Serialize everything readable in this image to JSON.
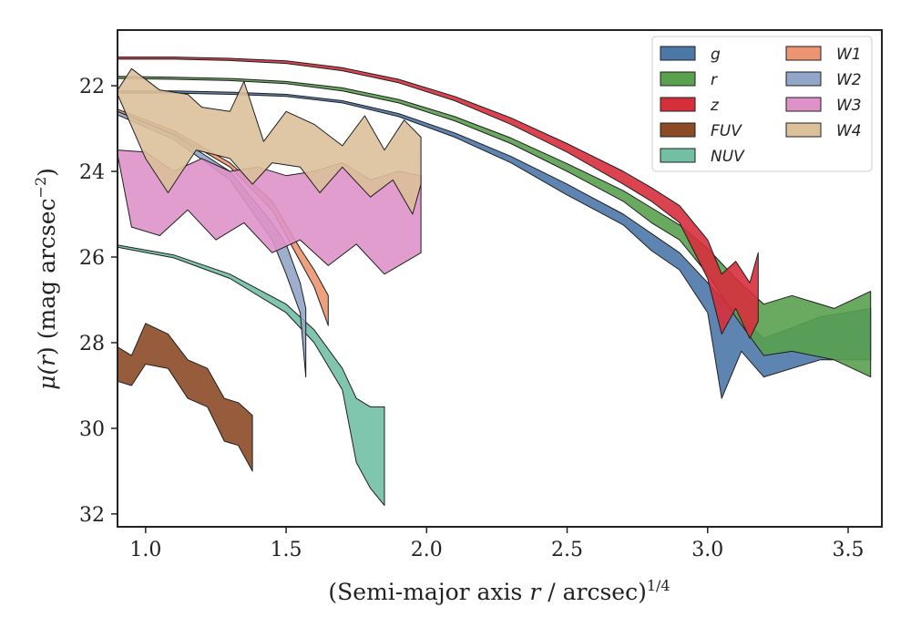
{
  "chart_data": {
    "type": "area",
    "xlabel": "(Semi-major axis r / arcsec)^1/4",
    "ylabel": "μ(r) (mag arcsec^-2)",
    "xlabel_parts": {
      "a": "(Semi-major axis ",
      "b": "r",
      "c": " / arcsec)",
      "sup": "1/4"
    },
    "ylabel_parts": {
      "a": "μ(",
      "b": "r",
      "c": ") (mag arcsec",
      "sup": "−2",
      "d": ")"
    },
    "xlim": [
      0.9,
      3.62
    ],
    "ylim": [
      32.3,
      20.7
    ],
    "y_inverted": true,
    "grid": false,
    "legend_position": "top-right",
    "x_ticks": [
      1.0,
      1.5,
      2.0,
      2.5,
      3.0,
      3.5
    ],
    "x_tick_labels": [
      "1.0",
      "1.5",
      "2.0",
      "2.5",
      "3.0",
      "3.5"
    ],
    "y_ticks": [
      22,
      24,
      26,
      28,
      30,
      32
    ],
    "y_tick_labels": [
      "22",
      "24",
      "26",
      "28",
      "30",
      "32"
    ],
    "series": [
      {
        "name": "g",
        "color": "#4c78a8",
        "upper": [
          [
            0.9,
            22.12
          ],
          [
            1.1,
            22.12
          ],
          [
            1.3,
            22.15
          ],
          [
            1.5,
            22.2
          ],
          [
            1.7,
            22.35
          ],
          [
            1.9,
            22.65
          ],
          [
            2.1,
            23.1
          ],
          [
            2.3,
            23.65
          ],
          [
            2.5,
            24.3
          ],
          [
            2.7,
            25.0
          ],
          [
            2.8,
            25.45
          ],
          [
            2.9,
            25.9
          ],
          [
            3.0,
            26.6
          ],
          [
            3.1,
            27.3
          ],
          [
            3.2,
            27.9
          ],
          [
            3.4,
            27.4
          ],
          [
            3.58,
            27.2
          ]
        ],
        "lower": [
          [
            0.9,
            22.17
          ],
          [
            1.1,
            22.17
          ],
          [
            1.3,
            22.2
          ],
          [
            1.5,
            22.25
          ],
          [
            1.7,
            22.4
          ],
          [
            1.9,
            22.72
          ],
          [
            2.1,
            23.2
          ],
          [
            2.3,
            23.8
          ],
          [
            2.5,
            24.55
          ],
          [
            2.7,
            25.25
          ],
          [
            2.8,
            25.85
          ],
          [
            2.9,
            26.3
          ],
          [
            3.0,
            27.3
          ],
          [
            3.05,
            29.3
          ],
          [
            3.12,
            28.2
          ],
          [
            3.2,
            28.8
          ],
          [
            3.4,
            28.4
          ],
          [
            3.58,
            28.4
          ]
        ]
      },
      {
        "name": "r",
        "color": "#59a14f",
        "upper": [
          [
            0.9,
            21.78
          ],
          [
            1.1,
            21.8
          ],
          [
            1.3,
            21.83
          ],
          [
            1.5,
            21.9
          ],
          [
            1.7,
            22.05
          ],
          [
            1.9,
            22.32
          ],
          [
            2.1,
            22.72
          ],
          [
            2.3,
            23.22
          ],
          [
            2.5,
            23.82
          ],
          [
            2.7,
            24.45
          ],
          [
            2.8,
            24.85
          ],
          [
            2.9,
            25.25
          ],
          [
            3.0,
            25.8
          ],
          [
            3.1,
            26.5
          ],
          [
            3.2,
            27.1
          ],
          [
            3.3,
            26.9
          ],
          [
            3.45,
            27.2
          ],
          [
            3.58,
            26.8
          ]
        ],
        "lower": [
          [
            0.9,
            21.83
          ],
          [
            1.1,
            21.85
          ],
          [
            1.3,
            21.88
          ],
          [
            1.5,
            21.95
          ],
          [
            1.7,
            22.12
          ],
          [
            1.9,
            22.4
          ],
          [
            2.1,
            22.82
          ],
          [
            2.3,
            23.35
          ],
          [
            2.5,
            24.0
          ],
          [
            2.7,
            24.7
          ],
          [
            2.8,
            25.2
          ],
          [
            2.9,
            25.6
          ],
          [
            3.0,
            26.4
          ],
          [
            3.1,
            27.4
          ],
          [
            3.2,
            28.3
          ],
          [
            3.3,
            28.2
          ],
          [
            3.45,
            28.4
          ],
          [
            3.58,
            28.8
          ]
        ]
      },
      {
        "name": "z",
        "color": "#d62f3c",
        "upper": [
          [
            0.9,
            21.33
          ],
          [
            1.1,
            21.33
          ],
          [
            1.3,
            21.36
          ],
          [
            1.5,
            21.42
          ],
          [
            1.7,
            21.58
          ],
          [
            1.9,
            21.85
          ],
          [
            2.1,
            22.25
          ],
          [
            2.3,
            22.75
          ],
          [
            2.5,
            23.35
          ],
          [
            2.7,
            24.0
          ],
          [
            2.8,
            24.38
          ],
          [
            2.9,
            24.8
          ],
          [
            3.0,
            25.6
          ],
          [
            3.05,
            26.4
          ],
          [
            3.1,
            26.1
          ],
          [
            3.15,
            26.6
          ],
          [
            3.18,
            25.9
          ]
        ],
        "lower": [
          [
            0.9,
            21.38
          ],
          [
            1.1,
            21.38
          ],
          [
            1.3,
            21.41
          ],
          [
            1.5,
            21.48
          ],
          [
            1.7,
            21.65
          ],
          [
            1.9,
            21.93
          ],
          [
            2.1,
            22.35
          ],
          [
            2.3,
            22.9
          ],
          [
            2.5,
            23.55
          ],
          [
            2.7,
            24.3
          ],
          [
            2.8,
            24.7
          ],
          [
            2.9,
            25.2
          ],
          [
            3.0,
            26.5
          ],
          [
            3.05,
            27.8
          ],
          [
            3.1,
            27.2
          ],
          [
            3.15,
            27.9
          ],
          [
            3.18,
            27.5
          ]
        ]
      },
      {
        "name": "FUV",
        "color": "#8c4a26",
        "upper": [
          [
            0.9,
            28.1
          ],
          [
            0.95,
            28.3
          ],
          [
            1.0,
            27.55
          ],
          [
            1.08,
            27.8
          ],
          [
            1.15,
            28.4
          ],
          [
            1.22,
            28.6
          ],
          [
            1.28,
            29.3
          ],
          [
            1.33,
            29.4
          ],
          [
            1.38,
            29.7
          ]
        ],
        "lower": [
          [
            0.9,
            28.9
          ],
          [
            0.95,
            29.0
          ],
          [
            1.0,
            28.5
          ],
          [
            1.08,
            28.6
          ],
          [
            1.15,
            29.3
          ],
          [
            1.22,
            29.5
          ],
          [
            1.28,
            30.3
          ],
          [
            1.33,
            30.4
          ],
          [
            1.38,
            31.0
          ]
        ]
      },
      {
        "name": "NUV",
        "color": "#72bfa4",
        "upper": [
          [
            0.9,
            25.72
          ],
          [
            1.1,
            25.95
          ],
          [
            1.3,
            26.4
          ],
          [
            1.5,
            27.1
          ],
          [
            1.6,
            27.7
          ],
          [
            1.7,
            28.6
          ],
          [
            1.75,
            29.3
          ],
          [
            1.8,
            29.5
          ],
          [
            1.85,
            29.5
          ]
        ],
        "lower": [
          [
            0.9,
            25.77
          ],
          [
            1.1,
            26.02
          ],
          [
            1.3,
            26.5
          ],
          [
            1.5,
            27.3
          ],
          [
            1.6,
            28.0
          ],
          [
            1.7,
            29.1
          ],
          [
            1.75,
            30.8
          ],
          [
            1.8,
            31.4
          ],
          [
            1.85,
            31.8
          ]
        ]
      },
      {
        "name": "W1",
        "color": "#ec9570",
        "upper": [
          [
            0.9,
            22.55
          ],
          [
            1.1,
            23.05
          ],
          [
            1.3,
            23.8
          ],
          [
            1.45,
            24.7
          ],
          [
            1.55,
            25.8
          ],
          [
            1.6,
            26.3
          ],
          [
            1.65,
            26.9
          ]
        ],
        "lower": [
          [
            0.9,
            22.6
          ],
          [
            1.1,
            23.12
          ],
          [
            1.3,
            23.9
          ],
          [
            1.45,
            24.9
          ],
          [
            1.55,
            26.1
          ],
          [
            1.6,
            26.7
          ],
          [
            1.65,
            27.6
          ]
        ]
      },
      {
        "name": "W2",
        "color": "#93a6c9",
        "upper": [
          [
            0.9,
            22.6
          ],
          [
            1.1,
            23.15
          ],
          [
            1.3,
            24.0
          ],
          [
            1.45,
            25.2
          ],
          [
            1.5,
            25.7
          ],
          [
            1.55,
            26.6
          ],
          [
            1.57,
            27.2
          ]
        ],
        "lower": [
          [
            0.9,
            22.68
          ],
          [
            1.1,
            23.25
          ],
          [
            1.3,
            24.2
          ],
          [
            1.45,
            25.6
          ],
          [
            1.5,
            26.4
          ],
          [
            1.55,
            27.3
          ],
          [
            1.57,
            28.8
          ]
        ]
      },
      {
        "name": "W3",
        "color": "#de92c8",
        "upper": [
          [
            0.9,
            23.5
          ],
          [
            1.0,
            23.55
          ],
          [
            1.1,
            24.0
          ],
          [
            1.2,
            23.7
          ],
          [
            1.3,
            24.0
          ],
          [
            1.4,
            23.9
          ],
          [
            1.5,
            24.1
          ],
          [
            1.6,
            24.0
          ],
          [
            1.7,
            23.8
          ],
          [
            1.8,
            24.2
          ],
          [
            1.9,
            24.0
          ],
          [
            1.98,
            24.1
          ]
        ],
        "lower": [
          [
            0.9,
            23.6
          ],
          [
            0.95,
            25.3
          ],
          [
            1.05,
            25.5
          ],
          [
            1.15,
            24.9
          ],
          [
            1.25,
            25.6
          ],
          [
            1.35,
            25.2
          ],
          [
            1.45,
            25.9
          ],
          [
            1.55,
            25.6
          ],
          [
            1.65,
            26.2
          ],
          [
            1.75,
            25.7
          ],
          [
            1.85,
            26.4
          ],
          [
            1.98,
            25.9
          ]
        ]
      },
      {
        "name": "W4",
        "color": "#dcc09a",
        "upper": [
          [
            0.9,
            22.1
          ],
          [
            0.95,
            21.6
          ],
          [
            1.05,
            22.1
          ],
          [
            1.15,
            22.2
          ],
          [
            1.2,
            22.5
          ],
          [
            1.3,
            22.6
          ],
          [
            1.35,
            21.9
          ],
          [
            1.42,
            23.3
          ],
          [
            1.5,
            22.6
          ],
          [
            1.6,
            22.9
          ],
          [
            1.7,
            23.4
          ],
          [
            1.78,
            22.7
          ],
          [
            1.85,
            23.5
          ],
          [
            1.92,
            22.8
          ],
          [
            1.98,
            23.2
          ]
        ],
        "lower": [
          [
            0.9,
            22.2
          ],
          [
            1.0,
            23.7
          ],
          [
            1.08,
            24.5
          ],
          [
            1.18,
            23.5
          ],
          [
            1.3,
            23.7
          ],
          [
            1.38,
            24.3
          ],
          [
            1.45,
            23.8
          ],
          [
            1.55,
            23.9
          ],
          [
            1.62,
            24.5
          ],
          [
            1.7,
            23.9
          ],
          [
            1.8,
            24.6
          ],
          [
            1.88,
            24.2
          ],
          [
            1.95,
            25.0
          ],
          [
            1.98,
            24.3
          ]
        ]
      }
    ]
  }
}
